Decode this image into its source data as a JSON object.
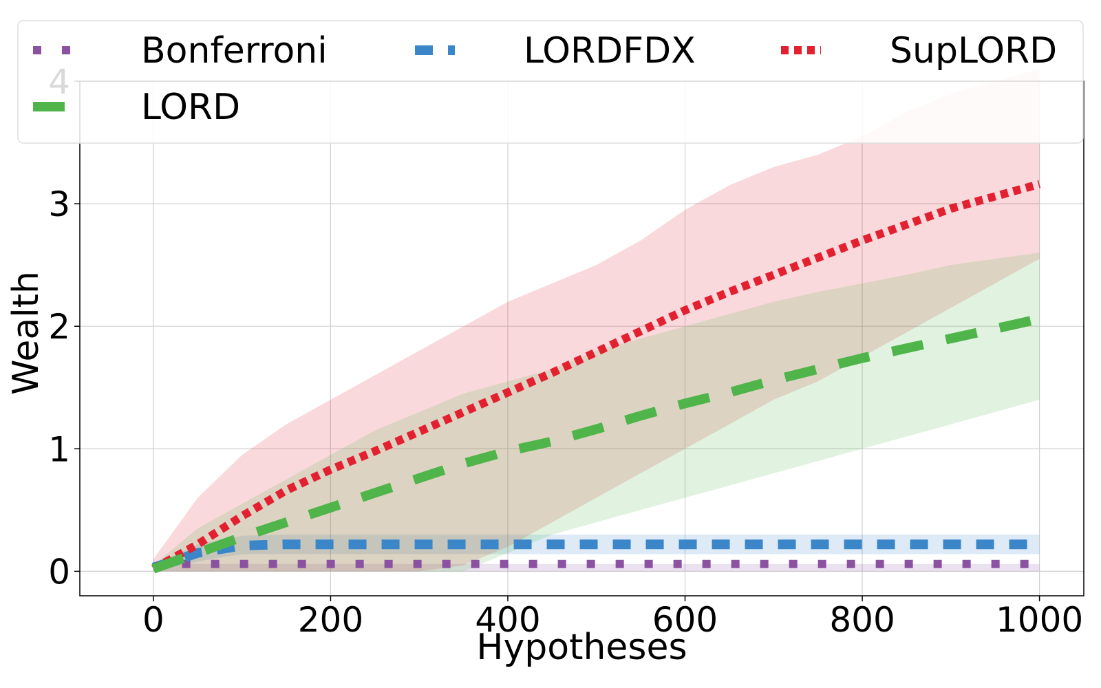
{
  "chart_data": {
    "type": "line",
    "title": "",
    "xlabel": "Hypotheses",
    "ylabel": "Wealth",
    "xlim": [
      -83,
      1050
    ],
    "ylim": [
      -0.2,
      4.0
    ],
    "xticks": [
      0,
      200,
      400,
      600,
      800,
      1000
    ],
    "xtick_labels": [
      "0",
      "200",
      "400",
      "600",
      "800",
      "1000"
    ],
    "yticks": [
      0,
      1,
      2,
      3,
      4
    ],
    "ytick_labels": [
      "0",
      "1",
      "2",
      "3",
      "4"
    ],
    "grid": true,
    "legend_position": "top",
    "series": [
      {
        "name": "Bonferroni",
        "color": "#8a52a0",
        "style": "dotted-square",
        "x": [
          0,
          20,
          40,
          100,
          200,
          400,
          600,
          800,
          1000
        ],
        "y": [
          0.04,
          0.06,
          0.06,
          0.06,
          0.06,
          0.06,
          0.06,
          0.06,
          0.06
        ],
        "band_lower": [
          0,
          0,
          0,
          0,
          0,
          0,
          0,
          0,
          0
        ],
        "band_upper": [
          0.06,
          0.06,
          0.06,
          0.06,
          0.06,
          0.06,
          0.06,
          0.06,
          0.06
        ]
      },
      {
        "name": "LORDFDX",
        "color": "#3a86c8",
        "style": "dashed",
        "x": [
          0,
          50,
          100,
          150,
          200,
          400,
          600,
          800,
          1000
        ],
        "y": [
          0.03,
          0.15,
          0.21,
          0.22,
          0.22,
          0.22,
          0.22,
          0.22,
          0.22
        ],
        "band_lower": [
          0,
          0.08,
          0.14,
          0.14,
          0.14,
          0.14,
          0.14,
          0.14,
          0.14
        ],
        "band_upper": [
          0.05,
          0.22,
          0.29,
          0.3,
          0.3,
          0.3,
          0.3,
          0.3,
          0.3
        ]
      },
      {
        "name": "SupLORD",
        "color": "#e3202f",
        "style": "dotted",
        "x": [
          0,
          50,
          100,
          150,
          200,
          250,
          300,
          350,
          400,
          450,
          500,
          550,
          600,
          650,
          700,
          750,
          800,
          850,
          900,
          950,
          1000
        ],
        "y": [
          0.02,
          0.22,
          0.45,
          0.66,
          0.83,
          0.98,
          1.14,
          1.3,
          1.46,
          1.62,
          1.79,
          1.96,
          2.13,
          2.28,
          2.42,
          2.56,
          2.7,
          2.83,
          2.96,
          3.06,
          3.16
        ],
        "band_lower": [
          0,
          0,
          0,
          0,
          0,
          0,
          0,
          0.05,
          0.2,
          0.4,
          0.6,
          0.8,
          1.0,
          1.2,
          1.4,
          1.55,
          1.75,
          1.95,
          2.15,
          2.35,
          2.55
        ],
        "band_upper": [
          0.1,
          0.6,
          0.95,
          1.2,
          1.4,
          1.6,
          1.8,
          2.0,
          2.2,
          2.35,
          2.5,
          2.7,
          2.95,
          3.15,
          3.3,
          3.4,
          3.55,
          3.75,
          3.9,
          4.0,
          4.1
        ]
      },
      {
        "name": "LORD",
        "color": "#4fb54a",
        "style": "long-dashed",
        "x": [
          0,
          50,
          100,
          150,
          200,
          250,
          300,
          350,
          400,
          450,
          500,
          550,
          600,
          650,
          700,
          750,
          800,
          850,
          900,
          950,
          1000
        ],
        "y": [
          0.02,
          0.15,
          0.28,
          0.4,
          0.52,
          0.64,
          0.76,
          0.88,
          0.98,
          1.06,
          1.16,
          1.27,
          1.37,
          1.46,
          1.56,
          1.65,
          1.74,
          1.82,
          1.9,
          1.98,
          2.06
        ],
        "band_lower": [
          0,
          0,
          0,
          0,
          0,
          0,
          0,
          0,
          0.15,
          0.3,
          0.4,
          0.5,
          0.6,
          0.7,
          0.8,
          0.9,
          1.0,
          1.1,
          1.2,
          1.3,
          1.4
        ],
        "band_upper": [
          0.05,
          0.35,
          0.55,
          0.75,
          0.95,
          1.15,
          1.3,
          1.45,
          1.55,
          1.65,
          1.8,
          1.9,
          2.0,
          2.1,
          2.2,
          2.28,
          2.35,
          2.42,
          2.5,
          2.55,
          2.6
        ]
      }
    ]
  }
}
